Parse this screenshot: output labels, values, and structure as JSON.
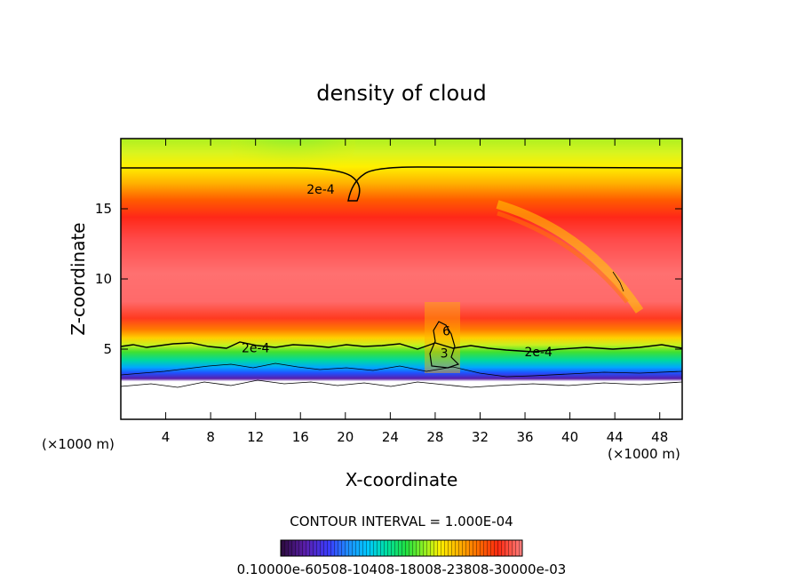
{
  "chart_data": {
    "type": "heatmap",
    "title": "density of cloud",
    "xlabel": "X-coordinate",
    "ylabel": "Z-coordinate",
    "x_unit_left": "(×1000 m)",
    "x_unit_right": "(×1000 m)",
    "xlim": [
      0,
      50
    ],
    "ylim": [
      0,
      20
    ],
    "x_ticks": [
      4,
      8,
      12,
      16,
      20,
      24,
      28,
      32,
      36,
      40,
      44,
      48
    ],
    "y_ticks": [
      5,
      10,
      15
    ],
    "x_tick_labels": [
      "4",
      "8",
      "12",
      "16",
      "20",
      "24",
      "28",
      "32",
      "36",
      "40",
      "44",
      "48"
    ],
    "y_tick_labels": [
      "5",
      "10",
      "15"
    ],
    "contour_interval_text": "CONTOUR INTERVAL = 1.000E-04",
    "contour_labels": [
      {
        "text": "2e-4",
        "x": 17.8,
        "z": 16.4
      },
      {
        "text": "2e-4",
        "x": 12.0,
        "z": 5.1
      },
      {
        "text": "2e-4",
        "x": 37.2,
        "z": 4.8
      },
      {
        "text": "6",
        "x": 29.0,
        "z": 6.3
      },
      {
        "text": "3",
        "x": 28.8,
        "z": 4.7
      }
    ],
    "colorbar_labels_text": "0.10000e-60508-10408-18008-23808-30000e-03",
    "colorbar_colors": [
      "#2a0a3a",
      "#5a1eaa",
      "#3a3cff",
      "#1e90ff",
      "#00c8ff",
      "#00e0a0",
      "#22e040",
      "#6ef020",
      "#c8f020",
      "#fff000",
      "#ffb000",
      "#ff6a00",
      "#ff2a10",
      "#ff6060",
      "#ff8080"
    ],
    "grid": false
  }
}
